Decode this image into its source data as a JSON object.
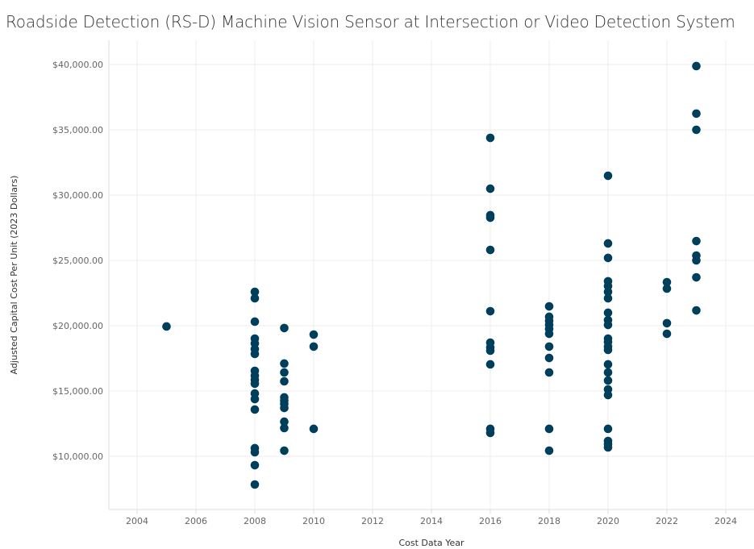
{
  "chart_data": {
    "type": "scatter",
    "title": "Roadside Detection (RS-D) Machine Vision Sensor at Intersection or Video Detection System",
    "xlabel": "Cost Data Year",
    "ylabel": "Adjusted Capital Cost Per Unit (2023 Dollars)",
    "xlim": [
      2003,
      2025
    ],
    "ylim": [
      5000,
      42000
    ],
    "x_ticks": [
      2004,
      2006,
      2008,
      2010,
      2012,
      2014,
      2016,
      2018,
      2020,
      2022,
      2024
    ],
    "y_ticks": [
      10000,
      15000,
      20000,
      25000,
      30000,
      35000,
      40000
    ],
    "y_tick_labels": [
      "$10,000.00",
      "$15,000.00",
      "$20,000.00",
      "$25,000.00",
      "$30,000.00",
      "$35,000.00",
      "$40,000.00"
    ],
    "grid": true,
    "color": "#003f5c",
    "points": [
      [
        2005,
        19940
      ],
      [
        2008,
        22590
      ],
      [
        2008,
        22100
      ],
      [
        2008,
        20310
      ],
      [
        2008,
        19010
      ],
      [
        2008,
        18640
      ],
      [
        2008,
        18210
      ],
      [
        2008,
        17840
      ],
      [
        2008,
        16540
      ],
      [
        2008,
        16170
      ],
      [
        2008,
        15860
      ],
      [
        2008,
        15560
      ],
      [
        2008,
        14810
      ],
      [
        2008,
        14380
      ],
      [
        2008,
        13580
      ],
      [
        2008,
        10620
      ],
      [
        2008,
        10310
      ],
      [
        2008,
        9320
      ],
      [
        2008,
        7840
      ],
      [
        2009,
        19820
      ],
      [
        2009,
        17100
      ],
      [
        2009,
        16420
      ],
      [
        2009,
        15740
      ],
      [
        2009,
        14510
      ],
      [
        2009,
        14260
      ],
      [
        2009,
        14010
      ],
      [
        2009,
        13700
      ],
      [
        2009,
        12650
      ],
      [
        2009,
        12160
      ],
      [
        2009,
        10430
      ],
      [
        2010,
        19320
      ],
      [
        2010,
        18400
      ],
      [
        2010,
        12100
      ],
      [
        2016,
        34380
      ],
      [
        2016,
        30490
      ],
      [
        2016,
        28460
      ],
      [
        2016,
        28270
      ],
      [
        2016,
        25800
      ],
      [
        2016,
        21110
      ],
      [
        2016,
        18700
      ],
      [
        2016,
        18330
      ],
      [
        2016,
        18090
      ],
      [
        2016,
        17040
      ],
      [
        2016,
        12100
      ],
      [
        2016,
        11790
      ],
      [
        2018,
        21480
      ],
      [
        2018,
        20680
      ],
      [
        2018,
        20370
      ],
      [
        2018,
        20060
      ],
      [
        2018,
        19750
      ],
      [
        2018,
        19380
      ],
      [
        2018,
        18400
      ],
      [
        2018,
        17530
      ],
      [
        2018,
        16420
      ],
      [
        2018,
        12100
      ],
      [
        2018,
        10430
      ],
      [
        2020,
        31480
      ],
      [
        2020,
        26300
      ],
      [
        2020,
        25190
      ],
      [
        2020,
        23400
      ],
      [
        2020,
        23030
      ],
      [
        2020,
        22590
      ],
      [
        2020,
        22100
      ],
      [
        2020,
        20990
      ],
      [
        2020,
        20430
      ],
      [
        2020,
        20060
      ],
      [
        2020,
        19010
      ],
      [
        2020,
        18760
      ],
      [
        2020,
        18400
      ],
      [
        2020,
        18150
      ],
      [
        2020,
        17040
      ],
      [
        2020,
        16420
      ],
      [
        2020,
        15800
      ],
      [
        2020,
        15120
      ],
      [
        2020,
        14690
      ],
      [
        2020,
        12100
      ],
      [
        2020,
        11170
      ],
      [
        2020,
        10930
      ],
      [
        2020,
        10680
      ],
      [
        2022,
        23330
      ],
      [
        2022,
        22840
      ],
      [
        2022,
        20190
      ],
      [
        2022,
        19380
      ],
      [
        2023,
        39880
      ],
      [
        2023,
        36240
      ],
      [
        2023,
        35000
      ],
      [
        2023,
        26480
      ],
      [
        2023,
        25370
      ],
      [
        2023,
        25000
      ],
      [
        2023,
        23700
      ],
      [
        2023,
        21170
      ]
    ]
  }
}
